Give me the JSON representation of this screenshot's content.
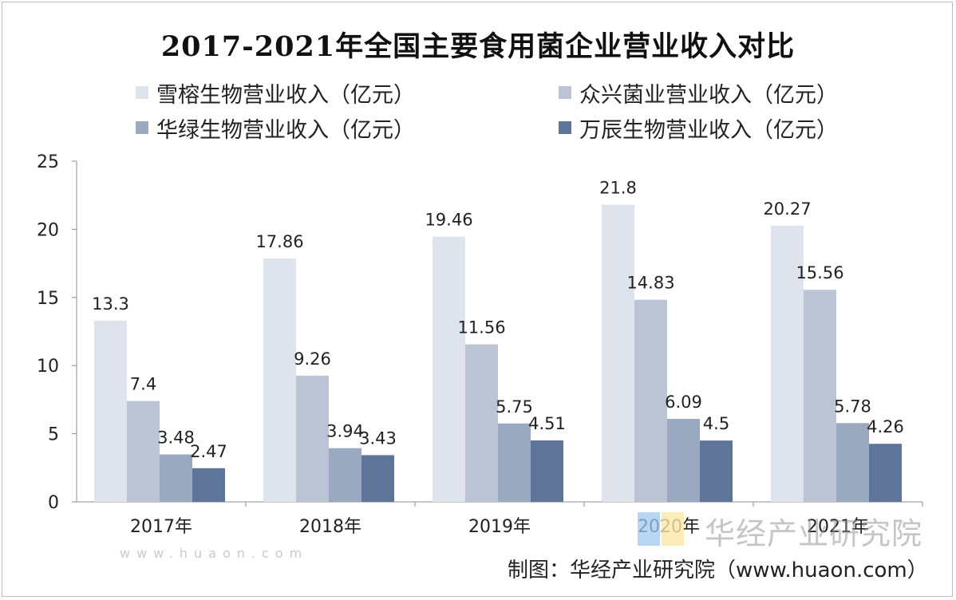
{
  "chart_data": {
    "type": "bar",
    "title": "2017-2021年全国主要食用菌企业营业收入对比",
    "categories": [
      "2017年",
      "2018年",
      "2019年",
      "2020年",
      "2021年"
    ],
    "series": [
      {
        "name": "雪榕生物营业收入（亿元）",
        "color": "#dee3ec",
        "values": [
          13.3,
          17.86,
          19.46,
          21.8,
          20.27
        ],
        "labels": [
          "13.3",
          "17.86",
          "19.46",
          "21.8",
          "20.27"
        ]
      },
      {
        "name": "众兴菌业营业收入（亿元）",
        "color": "#bac4d4",
        "values": [
          7.4,
          9.26,
          11.56,
          14.83,
          15.56
        ],
        "labels": [
          "7.4",
          "9.26",
          "11.56",
          "14.83",
          "15.56"
        ]
      },
      {
        "name": "华绿生物营业收入（亿元）",
        "color": "#9aa9c0",
        "values": [
          3.48,
          3.94,
          5.75,
          6.09,
          5.78
        ],
        "labels": [
          "3.48",
          "3.94",
          "5.75",
          "6.09",
          "5.78"
        ]
      },
      {
        "name": "万辰生物营业收入（亿元）",
        "color": "#5f7499",
        "values": [
          2.47,
          3.43,
          4.51,
          4.5,
          4.26
        ],
        "labels": [
          "2.47",
          "3.43",
          "4.51",
          "4.5",
          "4.26"
        ]
      }
    ],
    "yticks": [
      "0",
      "5",
      "10",
      "15",
      "20",
      "25"
    ],
    "ylim": [
      0,
      25
    ],
    "xlabel": "",
    "ylabel": "",
    "grid": false,
    "legend_position": "top"
  },
  "watermark": {
    "text": "华经产业研究院",
    "url": "www.huaon.com"
  },
  "credit": "制图：华经产业研究院（www.huaon.com）"
}
